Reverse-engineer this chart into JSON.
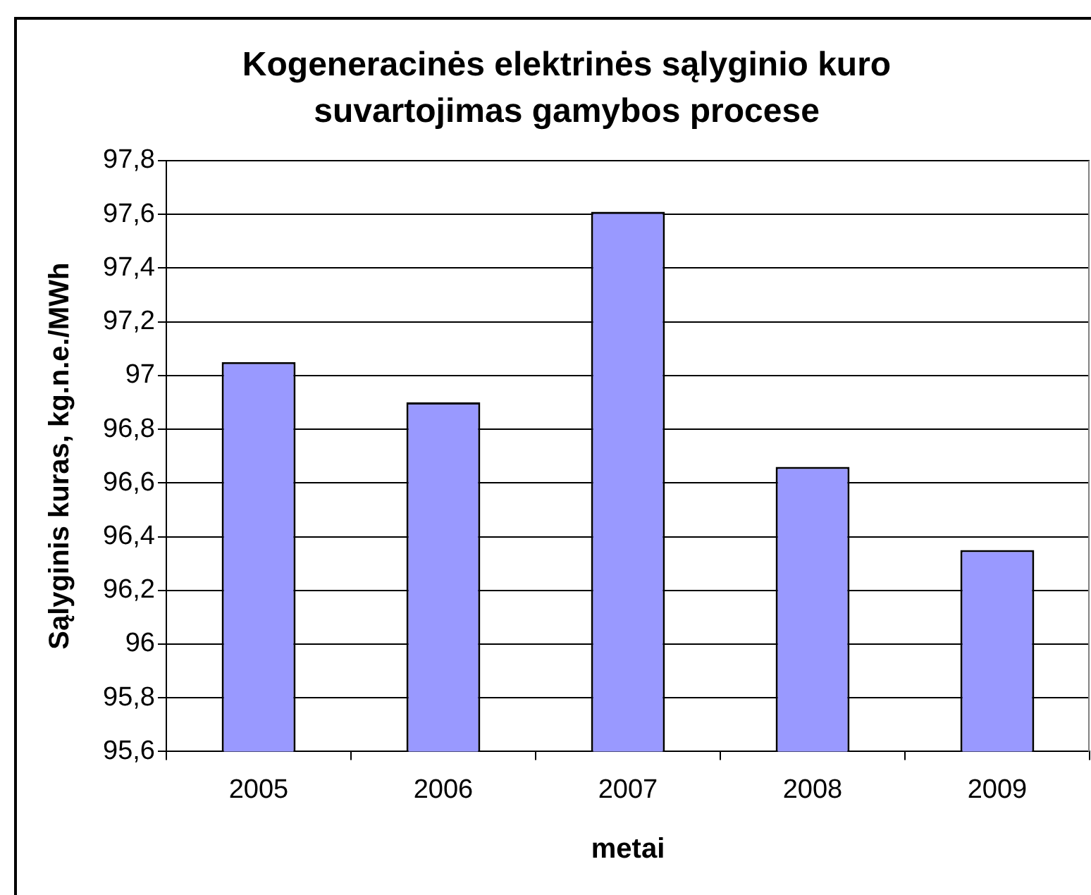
{
  "chart_data": {
    "type": "bar",
    "title": "Kogeneracinės elektrinės sąlyginio kuro suvartojimas gamybos procese",
    "xlabel": "metai",
    "ylabel": "Sąlyginis kuras, kg.n.e./MWh",
    "categories": [
      "2005",
      "2006",
      "2007",
      "2008",
      "2009"
    ],
    "values": [
      97.05,
      96.9,
      97.61,
      96.66,
      96.35
    ],
    "color": "#9999ff",
    "ylim": [
      95.6,
      97.8
    ],
    "yticks": [
      {
        "value": 95.6,
        "label": "95,6"
      },
      {
        "value": 95.8,
        "label": "95,8"
      },
      96,
      {
        "value": 96.2,
        "label": "96,2"
      },
      {
        "value": 96.4,
        "label": "96,4"
      },
      {
        "value": 96.6,
        "label": "96,6"
      },
      {
        "value": 96.8,
        "label": "96,8"
      },
      97,
      {
        "value": 97.2,
        "label": "97,2"
      },
      {
        "value": 97.4,
        "label": "97,4"
      },
      {
        "value": 97.6,
        "label": "97,6"
      },
      {
        "value": 97.8,
        "label": "97,8"
      }
    ],
    "grid": "y"
  }
}
